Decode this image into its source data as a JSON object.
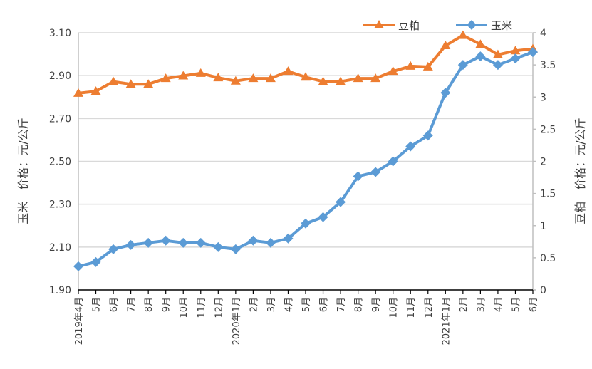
{
  "chart_data": {
    "type": "line",
    "title": "",
    "categories": [
      "2019年4月",
      "5月",
      "6月",
      "7月",
      "8月",
      "9月",
      "10月",
      "11月",
      "12月",
      "2020年1月",
      "2月",
      "3月",
      "4月",
      "5月",
      "6月",
      "7月",
      "8月",
      "9月",
      "10月",
      "11月",
      "12月",
      "2021年1月",
      "2月",
      "3月",
      "4月",
      "5月",
      "6月"
    ],
    "ylabel_left": "玉米　价格：元/公斤",
    "ylabel_right": "豆粕　价格：元/公斤",
    "ylim_left": [
      1.9,
      3.1
    ],
    "yticks_left": [
      "1.90",
      "2.10",
      "2.30",
      "2.50",
      "2.70",
      "2.90",
      "3.10"
    ],
    "ylim_right": [
      0,
      4
    ],
    "yticks_right": [
      "0",
      "0.5",
      "1",
      "1.5",
      "2",
      "2.5",
      "3",
      "3.5",
      "4"
    ],
    "grid": true,
    "legend_position": "top-right",
    "series": [
      {
        "name": "豆粕",
        "axis": "right",
        "color": "#ED7D31",
        "marker": "triangle",
        "values": [
          3.06,
          3.09,
          3.24,
          3.2,
          3.2,
          3.29,
          3.33,
          3.37,
          3.3,
          3.25,
          3.29,
          3.29,
          3.4,
          3.31,
          3.24,
          3.24,
          3.29,
          3.29,
          3.4,
          3.48,
          3.47,
          3.8,
          3.96,
          3.82,
          3.66,
          3.72,
          3.75
        ]
      },
      {
        "name": "玉米",
        "axis": "left",
        "color": "#5B9BD5",
        "marker": "diamond",
        "values": [
          2.01,
          2.03,
          2.09,
          2.11,
          2.12,
          2.13,
          2.12,
          2.12,
          2.1,
          2.09,
          2.13,
          2.12,
          2.14,
          2.21,
          2.24,
          2.31,
          2.43,
          2.45,
          2.5,
          2.57,
          2.62,
          2.82,
          2.95,
          2.99,
          2.95,
          2.98,
          3.01
        ]
      }
    ]
  }
}
